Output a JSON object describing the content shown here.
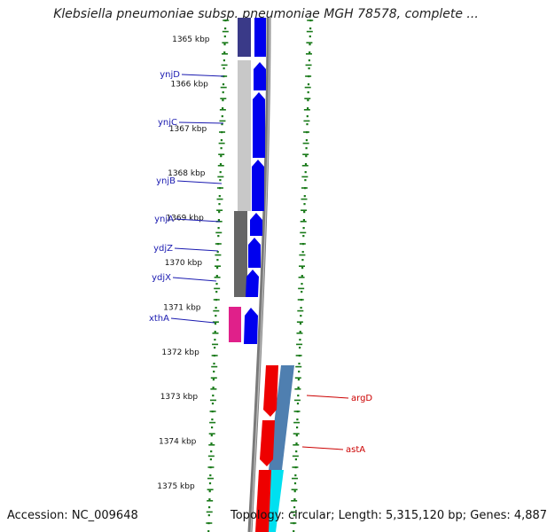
{
  "header": {
    "title": "Klebsiella pneumoniae subsp. pneumoniae MGH 78578, complete ..."
  },
  "footer": {
    "accession": "Accession: NC_009648",
    "stats": "Topology: circular; Length: 5,315,120 bp; Genes: 4,887"
  },
  "colors": {
    "backbone": "#7a7a7a",
    "forward_gene": "#0000ee",
    "reverse_gene": "#ee0000",
    "forward_label": "#1a1ab0",
    "reverse_label": "#cc0000",
    "tick": "#1a7a1a",
    "cog_dark_blue": "#3a3a88",
    "cog_light_gray": "#c8c8c8",
    "cog_dark_gray": "#666666",
    "cog_magenta": "#e0208a",
    "cog_steel_blue": "#4f7fb0",
    "cog_cyan": "#00e0f0"
  },
  "ticks": [
    {
      "label": "1365 kbp"
    },
    {
      "label": "1366 kbp"
    },
    {
      "label": "1367 kbp"
    },
    {
      "label": "1368 kbp"
    },
    {
      "label": "1369 kbp"
    },
    {
      "label": "1370 kbp"
    },
    {
      "label": "1371 kbp"
    },
    {
      "label": "1372 kbp"
    },
    {
      "label": "1373 kbp"
    },
    {
      "label": "1374 kbp"
    },
    {
      "label": "1375 kbp"
    }
  ],
  "forward_genes": [
    {
      "name": "ynjD"
    },
    {
      "name": "ynjC"
    },
    {
      "name": "ynjB"
    },
    {
      "name": "ynjA"
    },
    {
      "name": "ydjZ"
    },
    {
      "name": "ydjX"
    },
    {
      "name": "xthA"
    }
  ],
  "reverse_genes": [
    {
      "name": "argD"
    },
    {
      "name": "astA"
    }
  ]
}
